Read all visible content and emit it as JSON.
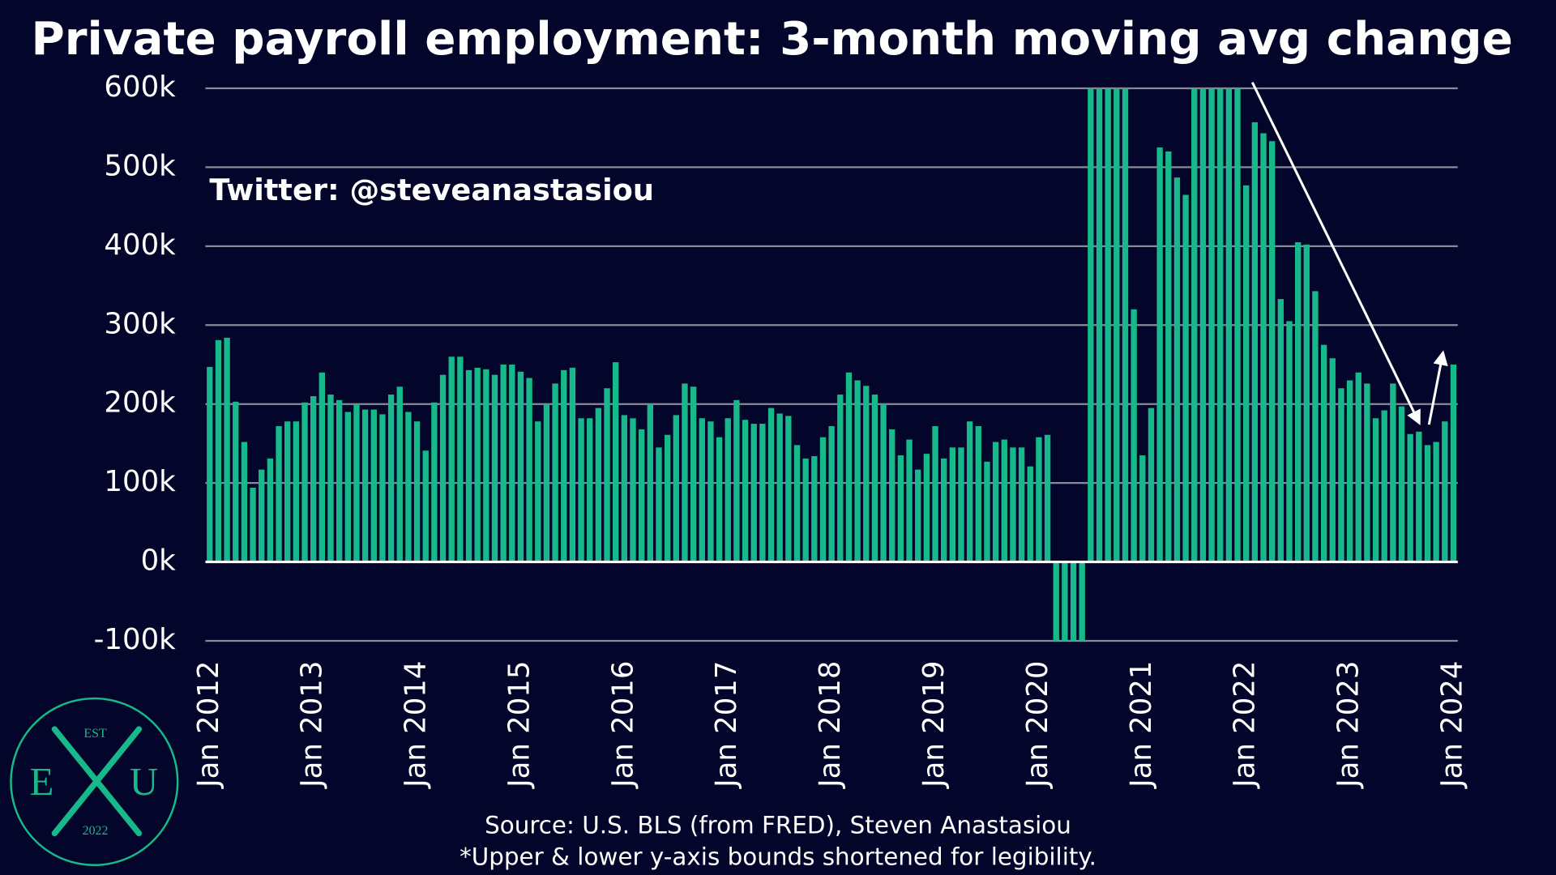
{
  "chart_data": {
    "type": "bar",
    "title": "Private payroll employment: 3-month moving avg change",
    "annotation": "Twitter: @steveanastasiou",
    "source": "Source: U.S. BLS (from FRED), Steven Anastasiou",
    "footnote": "*Upper & lower y-axis bounds shortened for legibility.",
    "logo": {
      "top": "EST",
      "left": "E",
      "right": "U",
      "bottom": "2022"
    },
    "color": "#17b889",
    "grid": true,
    "ylim": [
      -100000,
      600000
    ],
    "yticks": [
      {
        "value": -100000,
        "label": "-100k"
      },
      {
        "value": 0,
        "label": "0k"
      },
      {
        "value": 100000,
        "label": "100k"
      },
      {
        "value": 200000,
        "label": "200k"
      },
      {
        "value": 300000,
        "label": "300k"
      },
      {
        "value": 400000,
        "label": "400k"
      },
      {
        "value": 500000,
        "label": "500k"
      },
      {
        "value": 600000,
        "label": "600k"
      }
    ],
    "categories": [
      "Jan 2012",
      null,
      null,
      null,
      null,
      null,
      null,
      null,
      null,
      null,
      null,
      null,
      "Jan 2013",
      null,
      null,
      null,
      null,
      null,
      null,
      null,
      null,
      null,
      null,
      null,
      "Jan 2014",
      null,
      null,
      null,
      null,
      null,
      null,
      null,
      null,
      null,
      null,
      null,
      "Jan 2015",
      null,
      null,
      null,
      null,
      null,
      null,
      null,
      null,
      null,
      null,
      null,
      "Jan 2016",
      null,
      null,
      null,
      null,
      null,
      null,
      null,
      null,
      null,
      null,
      null,
      "Jan 2017",
      null,
      null,
      null,
      null,
      null,
      null,
      null,
      null,
      null,
      null,
      null,
      "Jan 2018",
      null,
      null,
      null,
      null,
      null,
      null,
      null,
      null,
      null,
      null,
      null,
      "Jan 2019",
      null,
      null,
      null,
      null,
      null,
      null,
      null,
      null,
      null,
      null,
      null,
      "Jan 2020",
      null,
      null,
      null,
      null,
      null,
      null,
      null,
      null,
      null,
      null,
      null,
      "Jan 2021",
      null,
      null,
      null,
      null,
      null,
      null,
      null,
      null,
      null,
      null,
      null,
      "Jan 2022",
      null,
      null,
      null,
      null,
      null,
      null,
      null,
      null,
      null,
      null,
      null,
      "Jan 2023",
      null,
      null,
      null,
      null,
      null,
      null,
      null,
      null,
      null,
      null,
      null,
      "Jan 2024"
    ],
    "values": [
      247000,
      281000,
      284000,
      203000,
      152000,
      94000,
      117000,
      131000,
      172000,
      178000,
      178000,
      202000,
      210000,
      240000,
      212000,
      205000,
      190000,
      200000,
      193000,
      193000,
      187000,
      212000,
      222000,
      190000,
      178000,
      141000,
      202000,
      237000,
      260000,
      260000,
      243000,
      246000,
      244000,
      237000,
      250000,
      250000,
      241000,
      233000,
      178000,
      200000,
      226000,
      243000,
      246000,
      182000,
      182000,
      195000,
      220000,
      253000,
      186000,
      182000,
      168000,
      200000,
      145000,
      161000,
      186000,
      226000,
      222000,
      182000,
      178000,
      158000,
      182000,
      205000,
      180000,
      175000,
      175000,
      195000,
      188000,
      185000,
      148000,
      131000,
      134000,
      158000,
      172000,
      212000,
      240000,
      230000,
      223000,
      212000,
      200000,
      168000,
      135000,
      155000,
      117000,
      137000,
      172000,
      131000,
      145000,
      145000,
      178000,
      172000,
      127000,
      152000,
      155000,
      145000,
      145000,
      121000,
      158000,
      161000,
      -100000,
      -100000,
      -100000,
      -100000,
      600000,
      600000,
      600000,
      600000,
      600000,
      320000,
      135000,
      195000,
      525000,
      520000,
      487000,
      465000,
      600000,
      600000,
      600000,
      600000,
      600000,
      600000,
      477000,
      557000,
      543000,
      533000,
      333000,
      305000,
      405000,
      402000,
      343000,
      275000,
      258000,
      220000,
      230000,
      240000,
      226000,
      182000,
      192000,
      226000,
      197000,
      162000,
      165000,
      148000,
      152000,
      178000,
      250000
    ]
  }
}
